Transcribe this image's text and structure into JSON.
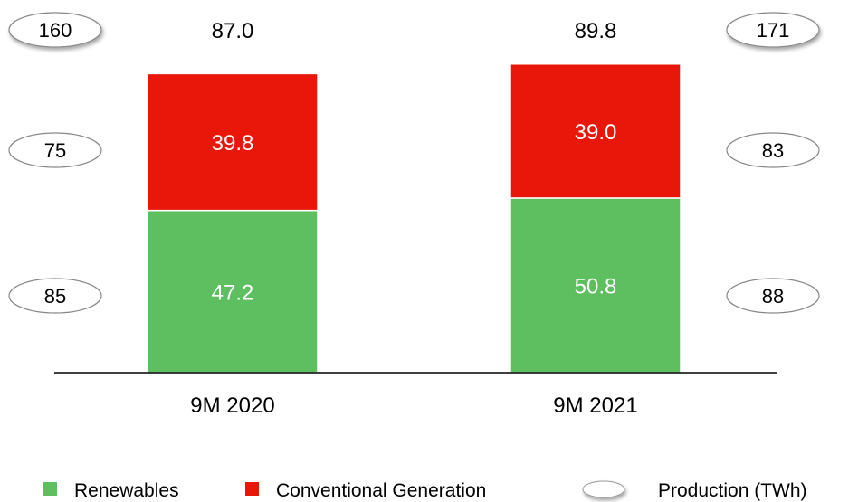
{
  "chart_data": {
    "type": "bar",
    "stacked": true,
    "categories": [
      "9M 2020",
      "9M 2021"
    ],
    "series": [
      {
        "name": "Renewables",
        "values": [
          47.2,
          50.8
        ],
        "color": "#5dbf5f"
      },
      {
        "name": "Conventional Generation",
        "values": [
          39.8,
          39.0
        ],
        "color": "#e8170a"
      }
    ],
    "totals": [
      "87.0",
      "89.8"
    ],
    "segment_labels": [
      [
        "47.2",
        "50.8"
      ],
      [
        "39.8",
        "39.0"
      ]
    ],
    "production_twh": {
      "name": "Production (TWh)",
      "left": {
        "total": "160",
        "conventional": "75",
        "renewables": "85"
      },
      "right": {
        "total": "171",
        "conventional": "83",
        "renewables": "88"
      }
    },
    "ylim": [
      0,
      100
    ],
    "grid": false,
    "legend": {
      "position": "bottom",
      "items": [
        "Renewables",
        "Conventional Generation",
        "Production (TWh)"
      ]
    }
  }
}
